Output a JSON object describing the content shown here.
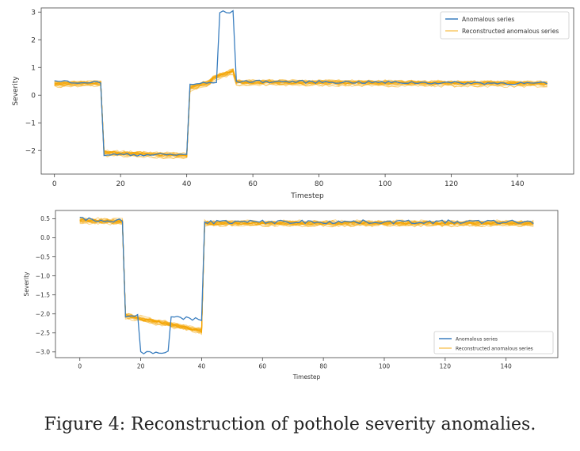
{
  "caption": "Figure 4: Reconstruction of pothole severity anomalies.",
  "colors": {
    "anomalous": "#3a7ebf",
    "reconstructed": "#f5a300"
  },
  "chart_data": [
    {
      "type": "line",
      "title": "",
      "xlabel": "Timestep",
      "ylabel": "Severity",
      "xlim": [
        -4,
        157
      ],
      "ylim": [
        -2.85,
        3.15
      ],
      "xticks": [
        0,
        20,
        40,
        60,
        80,
        100,
        120,
        140
      ],
      "yticks": [
        3,
        2,
        1,
        0,
        -1,
        -2
      ],
      "ytick_labels": [
        "3",
        "2",
        "1",
        "0",
        "−1",
        "−2"
      ],
      "legend": {
        "position": "top-right"
      },
      "series": [
        {
          "name": "Anomalous series",
          "segments": [
            {
              "x": [
                0,
                14
              ],
              "y": [
                0.5,
                0.45
              ]
            },
            {
              "x": [
                15,
                40
              ],
              "y": [
                -2.15,
                -2.15
              ]
            },
            {
              "x": [
                41,
                49
              ],
              "y": [
                0.4,
                0.45
              ]
            },
            {
              "x": [
                50,
                54
              ],
              "y": [
                3.0,
                3.0
              ]
            },
            {
              "x": [
                55,
                149
              ],
              "y": [
                0.5,
                0.42
              ]
            }
          ],
          "noise": 0.05
        },
        {
          "name": "Reconstructed anomalous series",
          "segments": [
            {
              "x": [
                0,
                14
              ],
              "y": [
                0.38,
                0.42
              ]
            },
            {
              "x": [
                15,
                40
              ],
              "y": [
                -2.1,
                -2.2
              ]
            },
            {
              "x": [
                41,
                47
              ],
              "y": [
                0.25,
                0.45
              ]
            },
            {
              "x": [
                48,
                54
              ],
              "y": [
                0.6,
                0.85
              ]
            },
            {
              "x": [
                55,
                149
              ],
              "y": [
                0.45,
                0.4
              ]
            }
          ],
          "bands": 18,
          "noise": 0.1
        }
      ]
    },
    {
      "type": "line",
      "title": "",
      "xlabel": "Timestep",
      "ylabel": "Severity",
      "xlim": [
        -8,
        157
      ],
      "ylim": [
        -3.15,
        0.72
      ],
      "xticks": [
        0,
        20,
        40,
        60,
        80,
        100,
        120,
        140
      ],
      "yticks": [
        0.5,
        0.0,
        -0.5,
        -1.0,
        -1.5,
        -2.0,
        -2.5,
        -3.0
      ],
      "ytick_labels": [
        "0.5",
        "0.0",
        "−0.5",
        "−1.0",
        "−1.5",
        "−2.0",
        "−2.5",
        "−3.0"
      ],
      "legend": {
        "position": "bottom-right"
      },
      "series": [
        {
          "name": "Anomalous series",
          "segments": [
            {
              "x": [
                0,
                14
              ],
              "y": [
                0.5,
                0.45
              ]
            },
            {
              "x": [
                15,
                19
              ],
              "y": [
                -2.05,
                -2.05
              ]
            },
            {
              "x": [
                20,
                29
              ],
              "y": [
                -3.0,
                -3.0
              ]
            },
            {
              "x": [
                30,
                40
              ],
              "y": [
                -2.1,
                -2.15
              ]
            },
            {
              "x": [
                41,
                149
              ],
              "y": [
                0.42,
                0.42
              ]
            }
          ],
          "noise": 0.05
        },
        {
          "name": "Reconstructed anomalous series",
          "segments": [
            {
              "x": [
                0,
                14
              ],
              "y": [
                0.45,
                0.42
              ]
            },
            {
              "x": [
                15,
                40
              ],
              "y": [
                -2.05,
                -2.45
              ]
            },
            {
              "x": [
                41,
                149
              ],
              "y": [
                0.38,
                0.38
              ]
            }
          ],
          "bands": 18,
          "noise": 0.08
        }
      ]
    }
  ]
}
